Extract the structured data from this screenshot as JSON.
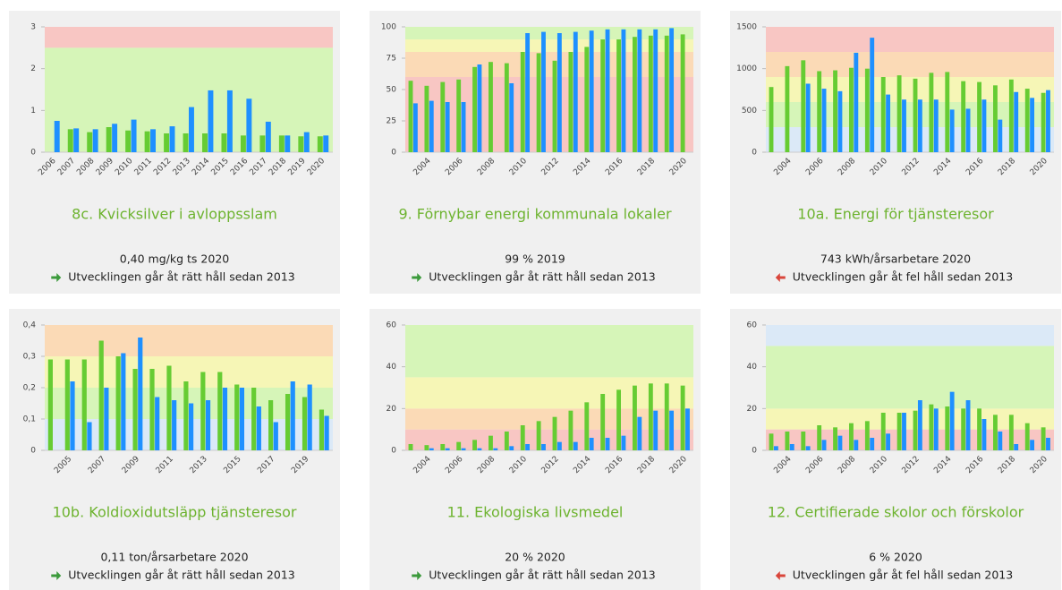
{
  "chart_data": [
    {
      "type": "bar",
      "title": "8c. Kvicksilver i avloppsslam",
      "annotations": [
        "0,40 mg/kg ts 2020",
        "Utvecklingen går åt rätt håll sedan 2013"
      ],
      "trend_color": "#3c9a3c",
      "categories": [
        "2006",
        "2007",
        "2008",
        "2009",
        "2010",
        "2011",
        "2012",
        "2013",
        "2014",
        "2015",
        "2016",
        "2017",
        "2018",
        "2019",
        "2020"
      ],
      "series": [
        {
          "color": "#66cc33",
          "values": [
            null,
            0.55,
            0.48,
            0.6,
            0.52,
            0.5,
            0.45,
            0.45,
            0.45,
            0.45,
            0.4,
            0.4,
            0.4,
            0.38,
            0.38
          ]
        },
        {
          "color": "#1e90ff",
          "values": [
            0.75,
            0.57,
            0.55,
            0.68,
            0.78,
            0.55,
            0.62,
            1.08,
            1.48,
            1.48,
            1.28,
            0.73,
            0.4,
            0.48,
            0.4
          ]
        }
      ],
      "ylim": [
        0,
        3
      ],
      "yticks": [
        0,
        1,
        2,
        3
      ],
      "bands": [
        {
          "from": 0,
          "to": 2.5,
          "color": "#d6f5b8"
        },
        {
          "from": 2.5,
          "to": 3,
          "color": "#f8c6c3"
        }
      ]
    },
    {
      "type": "bar",
      "title": "9. Förnybar energi kommunala lokaler",
      "annotations": [
        "99 % 2019",
        "Utvecklingen går åt rätt håll sedan 2013"
      ],
      "trend_color": "#3c9a3c",
      "categories": [
        null,
        "2004",
        null,
        "2006",
        null,
        "2008",
        null,
        "2010",
        null,
        "2012",
        null,
        "2014",
        null,
        "2016",
        null,
        "2018",
        null,
        "2020"
      ],
      "series": [
        {
          "color": "#66cc33",
          "values": [
            57,
            53,
            56,
            58,
            68,
            72,
            71,
            80,
            79,
            73,
            80,
            84,
            90,
            90,
            92,
            93,
            93,
            94
          ]
        },
        {
          "color": "#1e90ff",
          "values": [
            39,
            41,
            40,
            40,
            70,
            null,
            55,
            95,
            96,
            95,
            96,
            97,
            98,
            98,
            98,
            98,
            99,
            null
          ]
        }
      ],
      "ylim": [
        0,
        100
      ],
      "yticks": [
        0,
        25,
        50,
        75,
        100
      ],
      "bands": [
        {
          "from": 0,
          "to": 60,
          "color": "#f8c6c3"
        },
        {
          "from": 60,
          "to": 80,
          "color": "#fbdab6"
        },
        {
          "from": 80,
          "to": 90,
          "color": "#f6f6b6"
        },
        {
          "from": 90,
          "to": 100,
          "color": "#d6f5b8"
        }
      ]
    },
    {
      "type": "bar",
      "title": "10a. Energi för tjänsteresor",
      "annotations": [
        "743 kWh/årsarbetare 2020",
        "Utvecklingen går åt fel håll sedan 2013"
      ],
      "trend_color": "#d9453a",
      "categories": [
        null,
        "2004",
        null,
        "2006",
        null,
        "2008",
        null,
        "2010",
        null,
        "2012",
        null,
        "2014",
        null,
        "2016",
        null,
        "2018",
        null,
        "2020"
      ],
      "series": [
        {
          "color": "#66cc33",
          "values": [
            780,
            1030,
            1100,
            970,
            980,
            1010,
            1000,
            900,
            920,
            880,
            950,
            960,
            850,
            840,
            800,
            870,
            760,
            710
          ]
        },
        {
          "color": "#1e90ff",
          "values": [
            null,
            null,
            820,
            760,
            730,
            1190,
            1370,
            690,
            630,
            630,
            630,
            510,
            520,
            630,
            390,
            720,
            650,
            743
          ]
        }
      ],
      "ylim": [
        0,
        1500
      ],
      "yticks": [
        0,
        500,
        1000,
        1500
      ],
      "bands": [
        {
          "from": 0,
          "to": 300,
          "color": "#dbe9f7"
        },
        {
          "from": 300,
          "to": 600,
          "color": "#d6f5b8"
        },
        {
          "from": 600,
          "to": 900,
          "color": "#f6f6b6"
        },
        {
          "from": 900,
          "to": 1200,
          "color": "#fbdab6"
        },
        {
          "from": 1200,
          "to": 1500,
          "color": "#f8c6c3"
        }
      ]
    },
    {
      "type": "bar",
      "title": "10b. Koldioxidutsläpp tjänsteresor",
      "annotations": [
        "0,11 ton/årsarbetare 2020",
        "Utvecklingen går åt rätt håll sedan 2013"
      ],
      "trend_color": "#3c9a3c",
      "categories": [
        null,
        "2005",
        null,
        "2007",
        null,
        "2009",
        null,
        "2011",
        null,
        "2013",
        null,
        "2015",
        null,
        "2017",
        null,
        "2019",
        null
      ],
      "series": [
        {
          "color": "#66cc33",
          "values": [
            0.29,
            0.29,
            0.29,
            0.35,
            0.3,
            0.26,
            0.26,
            0.27,
            0.22,
            0.25,
            0.25,
            0.21,
            0.2,
            0.16,
            0.18,
            0.17,
            0.13
          ]
        },
        {
          "color": "#1e90ff",
          "values": [
            null,
            0.22,
            0.09,
            0.2,
            0.31,
            0.36,
            0.17,
            0.16,
            0.15,
            0.16,
            0.2,
            0.2,
            0.14,
            0.09,
            0.22,
            0.21,
            0.11
          ]
        }
      ],
      "ylim": [
        0,
        0.4
      ],
      "yticks": [
        0,
        {
          "value": 0.1,
          "label": "0,1"
        },
        {
          "value": 0.2,
          "label": "0,2"
        },
        {
          "value": 0.3,
          "label": "0,3"
        },
        {
          "value": 0.4,
          "label": "0,4"
        }
      ],
      "bands": [
        {
          "from": 0,
          "to": 0.1,
          "color": "#dbe9f7"
        },
        {
          "from": 0.1,
          "to": 0.2,
          "color": "#d6f5b8"
        },
        {
          "from": 0.2,
          "to": 0.3,
          "color": "#f6f6b6"
        },
        {
          "from": 0.3,
          "to": 0.4,
          "color": "#fbdab6"
        }
      ]
    },
    {
      "type": "bar",
      "title": "11. Ekologiska livsmedel",
      "annotations": [
        "20 % 2020",
        "Utvecklingen går åt rätt håll sedan 2013"
      ],
      "trend_color": "#3c9a3c",
      "categories": [
        null,
        "2004",
        null,
        "2006",
        null,
        "2008",
        null,
        "2010",
        null,
        "2012",
        null,
        "2014",
        null,
        "2016",
        null,
        "2018",
        null,
        "2020"
      ],
      "series": [
        {
          "color": "#66cc33",
          "values": [
            3,
            2.5,
            3,
            4,
            5,
            7,
            9,
            12,
            14,
            16,
            19,
            23,
            27,
            29,
            31,
            32,
            32,
            31
          ]
        },
        {
          "color": "#1e90ff",
          "values": [
            null,
            1,
            1,
            1,
            1,
            1,
            2,
            3,
            3,
            4,
            4,
            6,
            6,
            7,
            16,
            19,
            19,
            20
          ]
        }
      ],
      "ylim": [
        0,
        60
      ],
      "yticks": [
        0,
        20,
        40,
        60
      ],
      "bands": [
        {
          "from": 0,
          "to": 10,
          "color": "#f8c6c3"
        },
        {
          "from": 10,
          "to": 20,
          "color": "#fbdab6"
        },
        {
          "from": 20,
          "to": 35,
          "color": "#f6f6b6"
        },
        {
          "from": 35,
          "to": 60,
          "color": "#d6f5b8"
        }
      ]
    },
    {
      "type": "bar",
      "title": "12. Certifierade skolor och förskolor",
      "annotations": [
        "6 % 2020",
        "Utvecklingen går åt fel håll sedan 2013"
      ],
      "trend_color": "#d9453a",
      "categories": [
        null,
        "2004",
        null,
        "2006",
        null,
        "2008",
        null,
        "2010",
        null,
        "2012",
        null,
        "2014",
        null,
        "2016",
        null,
        "2018",
        null,
        "2020"
      ],
      "series": [
        {
          "color": "#66cc33",
          "values": [
            8,
            9,
            9,
            12,
            11,
            13,
            14,
            18,
            18,
            19,
            22,
            21,
            20,
            20,
            17,
            17,
            13,
            11
          ]
        },
        {
          "color": "#1e90ff",
          "values": [
            2,
            3,
            2,
            5,
            7,
            5,
            6,
            8,
            18,
            24,
            20,
            28,
            24,
            15,
            9,
            3,
            5,
            6
          ]
        }
      ],
      "ylim": [
        0,
        60
      ],
      "yticks": [
        0,
        20,
        40,
        60
      ],
      "bands": [
        {
          "from": 0,
          "to": 10,
          "color": "#f8c6c3"
        },
        {
          "from": 10,
          "to": 20,
          "color": "#f6f6b6"
        },
        {
          "from": 20,
          "to": 50,
          "color": "#d6f5b8"
        },
        {
          "from": 50,
          "to": 60,
          "color": "#dbe9f7"
        }
      ]
    }
  ]
}
